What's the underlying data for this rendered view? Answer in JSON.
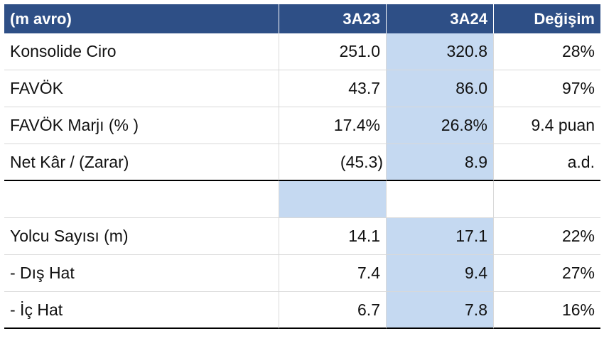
{
  "header": {
    "label": "(m avro)",
    "col1": "3A23",
    "col2": "3A24",
    "col3": "Değişim"
  },
  "rows": [
    {
      "label": "Konsolide Ciro",
      "v1": "251.0",
      "v2": "320.8",
      "v3": "28%"
    },
    {
      "label": "FAVÖK",
      "v1": "43.7",
      "v2": "86.0",
      "v3": "97%"
    },
    {
      "label": "FAVÖK Marjı (% )",
      "v1": "17.4%",
      "v2": "26.8%",
      "v3": "9.4 puan"
    },
    {
      "label": "Net Kâr / (Zarar)",
      "v1": "(45.3)",
      "v2": "8.9",
      "v3": "a.d."
    },
    {
      "label": "",
      "v1": "",
      "v2": "",
      "v3": ""
    },
    {
      "label": "Yolcu Sayısı (m)",
      "v1": "14.1",
      "v2": "17.1",
      "v3": "22%"
    },
    {
      "label": "- Dış Hat",
      "v1": "7.4",
      "v2": "9.4",
      "v3": "27%"
    },
    {
      "label": "- İç Hat",
      "v1": "6.7",
      "v2": "7.8",
      "v3": "16%"
    }
  ]
}
